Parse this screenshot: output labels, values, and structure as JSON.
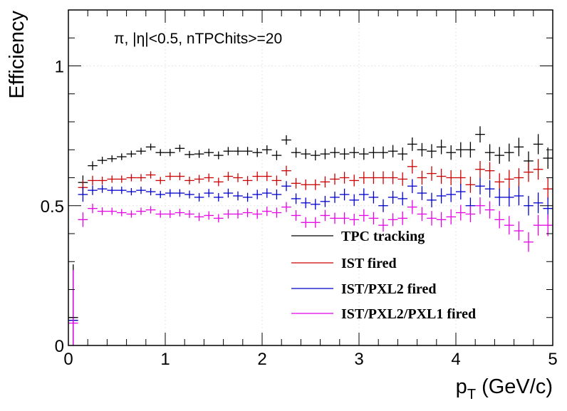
{
  "chart_data": {
    "type": "scatter",
    "title": "",
    "annotation": "π, |η|<0.5, nTPChits>=20",
    "xlabel": "p",
    "xlabel_sub": "T",
    "xlabel_units": " (GeV/c)",
    "ylabel": "Efficiency",
    "xlim": [
      0,
      5
    ],
    "ylim": [
      0,
      1.2
    ],
    "x_ticks": [
      0,
      1,
      2,
      3,
      4,
      5
    ],
    "x_tick_labels": [
      "0",
      "1",
      "2",
      "3",
      "4",
      "5"
    ],
    "y_ticks": [
      0,
      0.5,
      1
    ],
    "y_tick_labels": [
      "0",
      "0.5",
      "1"
    ],
    "grid": true,
    "legend_position": "bottom-right",
    "bin_width": 0.1,
    "x": [
      0.05,
      0.15,
      0.25,
      0.35,
      0.45,
      0.55,
      0.65,
      0.75,
      0.85,
      0.95,
      1.05,
      1.15,
      1.25,
      1.35,
      1.45,
      1.55,
      1.65,
      1.75,
      1.85,
      1.95,
      2.05,
      2.15,
      2.25,
      2.35,
      2.45,
      2.55,
      2.65,
      2.75,
      2.85,
      2.95,
      3.05,
      3.15,
      3.25,
      3.35,
      3.45,
      3.55,
      3.65,
      3.75,
      3.85,
      3.95,
      4.05,
      4.15,
      4.25,
      4.35,
      4.45,
      4.55,
      4.65,
      4.75,
      4.85,
      4.95
    ],
    "series": [
      {
        "name": "TPC tracking",
        "color": "#000000",
        "y": [
          0.1,
          0.583,
          0.643,
          0.662,
          0.668,
          0.675,
          0.685,
          0.695,
          0.71,
          0.69,
          0.69,
          0.705,
          0.683,
          0.685,
          0.69,
          0.68,
          0.695,
          0.695,
          0.695,
          0.69,
          0.7,
          0.68,
          0.735,
          0.69,
          0.685,
          0.68,
          0.685,
          0.69,
          0.685,
          0.69,
          0.685,
          0.69,
          0.69,
          0.695,
          0.685,
          0.72,
          0.7,
          0.695,
          0.71,
          0.69,
          0.7,
          0.7,
          0.755,
          0.69,
          0.68,
          0.69,
          0.71,
          0.66,
          0.72,
          0.67
        ],
        "yerr": [
          0.19,
          0.025,
          0.016,
          0.013,
          0.012,
          0.012,
          0.012,
          0.012,
          0.012,
          0.012,
          0.013,
          0.013,
          0.013,
          0.014,
          0.014,
          0.014,
          0.015,
          0.015,
          0.015,
          0.016,
          0.016,
          0.017,
          0.017,
          0.018,
          0.018,
          0.018,
          0.019,
          0.019,
          0.02,
          0.02,
          0.021,
          0.021,
          0.022,
          0.022,
          0.023,
          0.024,
          0.024,
          0.025,
          0.026,
          0.026,
          0.027,
          0.028,
          0.029,
          0.03,
          0.03,
          0.032,
          0.033,
          0.034,
          0.036,
          0.038
        ]
      },
      {
        "name": "IST fired",
        "color": "#cc0000",
        "y": [
          0.09,
          0.565,
          0.59,
          0.59,
          0.595,
          0.595,
          0.6,
          0.6,
          0.61,
          0.59,
          0.605,
          0.605,
          0.59,
          0.595,
          0.6,
          0.585,
          0.605,
          0.6,
          0.59,
          0.605,
          0.605,
          0.59,
          0.625,
          0.58,
          0.575,
          0.575,
          0.585,
          0.595,
          0.6,
          0.59,
          0.6,
          0.6,
          0.6,
          0.6,
          0.595,
          0.64,
          0.6,
          0.615,
          0.605,
          0.6,
          0.6,
          0.575,
          0.63,
          0.625,
          0.585,
          0.595,
          0.6,
          0.62,
          0.63,
          0.56
        ],
        "yerr": [
          0.18,
          0.026,
          0.017,
          0.014,
          0.013,
          0.013,
          0.013,
          0.013,
          0.013,
          0.013,
          0.014,
          0.014,
          0.014,
          0.015,
          0.015,
          0.015,
          0.016,
          0.016,
          0.016,
          0.017,
          0.017,
          0.018,
          0.018,
          0.019,
          0.019,
          0.019,
          0.02,
          0.02,
          0.021,
          0.021,
          0.022,
          0.022,
          0.023,
          0.023,
          0.024,
          0.025,
          0.025,
          0.026,
          0.027,
          0.027,
          0.028,
          0.029,
          0.03,
          0.031,
          0.031,
          0.033,
          0.034,
          0.035,
          0.037,
          0.039
        ]
      },
      {
        "name": "IST/PXL2 fired",
        "color": "#0000cc",
        "y": [
          0.09,
          0.54,
          0.555,
          0.56,
          0.555,
          0.555,
          0.55,
          0.555,
          0.55,
          0.54,
          0.545,
          0.545,
          0.54,
          0.53,
          0.545,
          0.53,
          0.545,
          0.535,
          0.53,
          0.54,
          0.545,
          0.54,
          0.57,
          0.525,
          0.51,
          0.505,
          0.515,
          0.53,
          0.54,
          0.52,
          0.54,
          0.53,
          0.5,
          0.53,
          0.525,
          0.57,
          0.545,
          0.52,
          0.535,
          0.54,
          0.55,
          0.5,
          0.57,
          0.56,
          0.53,
          0.53,
          0.535,
          0.5,
          0.51,
          0.49
        ],
        "yerr": [
          0.18,
          0.026,
          0.017,
          0.014,
          0.013,
          0.013,
          0.013,
          0.013,
          0.013,
          0.013,
          0.014,
          0.014,
          0.014,
          0.015,
          0.015,
          0.015,
          0.016,
          0.016,
          0.016,
          0.017,
          0.017,
          0.018,
          0.018,
          0.019,
          0.019,
          0.019,
          0.02,
          0.02,
          0.021,
          0.021,
          0.022,
          0.022,
          0.023,
          0.023,
          0.024,
          0.025,
          0.025,
          0.026,
          0.027,
          0.027,
          0.028,
          0.029,
          0.03,
          0.031,
          0.031,
          0.033,
          0.034,
          0.035,
          0.037,
          0.039
        ]
      },
      {
        "name": "IST/PXL2/PXL1 fired",
        "color": "#e600e6",
        "y": [
          0.08,
          0.45,
          0.49,
          0.48,
          0.48,
          0.475,
          0.47,
          0.48,
          0.485,
          0.47,
          0.47,
          0.475,
          0.47,
          0.46,
          0.465,
          0.455,
          0.47,
          0.47,
          0.475,
          0.47,
          0.48,
          0.475,
          0.495,
          0.465,
          0.44,
          0.44,
          0.465,
          0.455,
          0.455,
          0.45,
          0.465,
          0.455,
          0.43,
          0.45,
          0.455,
          0.495,
          0.47,
          0.455,
          0.45,
          0.46,
          0.475,
          0.47,
          0.5,
          0.485,
          0.45,
          0.43,
          0.41,
          0.37,
          0.43,
          0.43
        ],
        "yerr": [
          0.19,
          0.026,
          0.017,
          0.014,
          0.013,
          0.013,
          0.013,
          0.013,
          0.013,
          0.013,
          0.014,
          0.014,
          0.014,
          0.015,
          0.015,
          0.015,
          0.016,
          0.016,
          0.016,
          0.017,
          0.017,
          0.018,
          0.018,
          0.019,
          0.019,
          0.019,
          0.02,
          0.02,
          0.021,
          0.021,
          0.022,
          0.022,
          0.023,
          0.023,
          0.024,
          0.025,
          0.025,
          0.026,
          0.027,
          0.027,
          0.028,
          0.029,
          0.03,
          0.031,
          0.031,
          0.033,
          0.034,
          0.035,
          0.037,
          0.039
        ]
      }
    ]
  }
}
